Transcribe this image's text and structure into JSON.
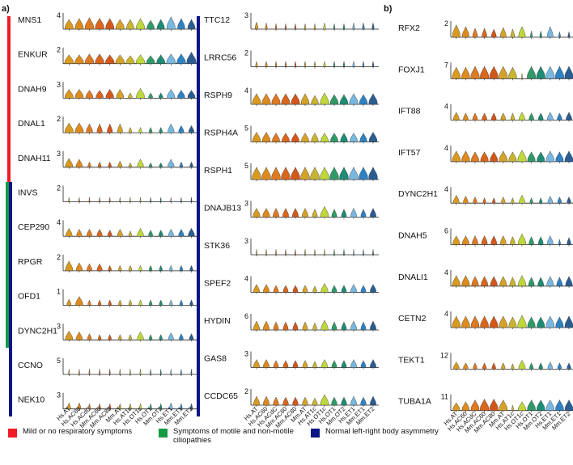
{
  "figure": {
    "panel_labels": [
      "a)",
      "b)"
    ],
    "x_labels": [
      "Hs.AT",
      "Hs.AC60",
      "Hs.ACdC",
      "Mm.AC60",
      "Mm.AC80",
      "Mm.AT",
      "Hs.AT1c",
      "Hs.OT1c",
      "Hs.OT1",
      "Mm.OT2",
      "Hs.ET1",
      "Mm.ET1",
      "Mm.ET2"
    ],
    "cell_colors": [
      "#d99a1e",
      "#dd8b1f",
      "#de7a22",
      "#d9661c",
      "#d4571a",
      "#d5a229",
      "#c8b431",
      "#bfd73a",
      "#2f9a67",
      "#1d8c74",
      "#78b7e0",
      "#2f82c2",
      "#2b5d92"
    ],
    "panel_a_left": [
      {
        "gene": "MNS1",
        "ymax": "4",
        "heights": [
          0.55,
          0.6,
          0.65,
          0.62,
          0.6,
          0.55,
          0.55,
          0.6,
          0.5,
          0.55,
          0.7,
          0.6,
          0.55
        ],
        "widths": [
          0.8,
          0.8,
          0.85,
          0.85,
          0.8,
          0.8,
          0.7,
          0.8,
          0.7,
          0.7,
          0.8,
          0.7,
          0.7
        ]
      },
      {
        "gene": "ENKUR",
        "ymax": "2",
        "heights": [
          0.5,
          0.5,
          0.55,
          0.55,
          0.5,
          0.5,
          0.45,
          0.5,
          0.45,
          0.5,
          0.55,
          0.55,
          0.65
        ],
        "widths": [
          0.85,
          0.85,
          0.85,
          0.85,
          0.85,
          0.85,
          0.8,
          0.85,
          0.8,
          0.8,
          0.85,
          0.85,
          0.9
        ]
      },
      {
        "gene": "DNAH9",
        "ymax": "3",
        "heights": [
          0.5,
          0.5,
          0.45,
          0.45,
          0.5,
          0.5,
          0.3,
          0.55,
          0.3,
          0.3,
          0.5,
          0.45,
          0.45
        ],
        "widths": [
          0.8,
          0.8,
          0.7,
          0.7,
          0.75,
          0.7,
          0.4,
          0.8,
          0.4,
          0.4,
          0.75,
          0.7,
          0.7
        ]
      },
      {
        "gene": "DNAL1",
        "ymax": "2",
        "heights": [
          0.55,
          0.55,
          0.5,
          0.5,
          0.5,
          0.5,
          0.3,
          0.3,
          0.3,
          0.3,
          0.5,
          0.4,
          0.4
        ],
        "widths": [
          0.8,
          0.8,
          0.6,
          0.5,
          0.5,
          0.5,
          0.3,
          0.3,
          0.3,
          0.3,
          0.6,
          0.5,
          0.5
        ]
      },
      {
        "gene": "DNAH11",
        "ymax": "3",
        "heights": [
          0.5,
          0.45,
          0.3,
          0.3,
          0.3,
          0.35,
          0.25,
          0.45,
          0.25,
          0.25,
          0.45,
          0.3,
          0.3
        ],
        "widths": [
          0.7,
          0.6,
          0.3,
          0.3,
          0.3,
          0.4,
          0.3,
          0.6,
          0.3,
          0.3,
          0.6,
          0.3,
          0.3
        ]
      },
      {
        "gene": "INVS",
        "ymax": "2",
        "heights": [
          0.25,
          0.25,
          0.25,
          0.25,
          0.25,
          0.25,
          0.25,
          0.25,
          0.25,
          0.25,
          0.25,
          0.25,
          0.25
        ],
        "widths": [
          0.1,
          0.1,
          0.1,
          0.1,
          0.1,
          0.1,
          0.1,
          0.1,
          0.1,
          0.1,
          0.1,
          0.1,
          0.1
        ]
      },
      {
        "gene": "CEP290",
        "ymax": "4",
        "heights": [
          0.45,
          0.4,
          0.4,
          0.4,
          0.35,
          0.4,
          0.3,
          0.45,
          0.35,
          0.35,
          0.4,
          0.4,
          0.45
        ],
        "widths": [
          0.6,
          0.5,
          0.5,
          0.5,
          0.4,
          0.5,
          0.3,
          0.6,
          0.4,
          0.4,
          0.5,
          0.5,
          0.6
        ]
      },
      {
        "gene": "RPGR",
        "ymax": "2",
        "heights": [
          0.55,
          0.45,
          0.4,
          0.4,
          0.3,
          0.3,
          0.3,
          0.3,
          0.3,
          0.3,
          0.3,
          0.3,
          0.3
        ],
        "widths": [
          0.7,
          0.6,
          0.5,
          0.5,
          0.3,
          0.3,
          0.3,
          0.3,
          0.3,
          0.3,
          0.3,
          0.3,
          0.3
        ]
      },
      {
        "gene": "OFD1",
        "ymax": "1",
        "heights": [
          0.35,
          0.5,
          0.3,
          0.3,
          0.3,
          0.3,
          0.3,
          0.3,
          0.3,
          0.3,
          0.3,
          0.3,
          0.3
        ],
        "widths": [
          0.4,
          0.7,
          0.3,
          0.3,
          0.3,
          0.3,
          0.3,
          0.3,
          0.3,
          0.3,
          0.3,
          0.3,
          0.3
        ]
      },
      {
        "gene": "DYNC2H1",
        "ymax": "3",
        "heights": [
          0.5,
          0.45,
          0.35,
          0.3,
          0.3,
          0.3,
          0.3,
          0.45,
          0.3,
          0.3,
          0.4,
          0.35,
          0.35
        ],
        "widths": [
          0.7,
          0.6,
          0.4,
          0.3,
          0.3,
          0.3,
          0.3,
          0.6,
          0.3,
          0.3,
          0.5,
          0.4,
          0.4
        ]
      },
      {
        "gene": "CCNO",
        "ymax": "5",
        "heights": [
          0.3,
          0.3,
          0.3,
          0.3,
          0.3,
          0.3,
          0.3,
          0.3,
          0.3,
          0.3,
          0.3,
          0.3,
          0.3
        ],
        "widths": [
          0.1,
          0.1,
          0.1,
          0.1,
          0.1,
          0.1,
          0.1,
          0.1,
          0.1,
          0.1,
          0.1,
          0.1,
          0.1
        ]
      },
      {
        "gene": "NEK10",
        "ymax": "3",
        "heights": [
          0.35,
          0.35,
          0.3,
          0.3,
          0.3,
          0.3,
          0.3,
          0.3,
          0.3,
          0.3,
          0.35,
          0.3,
          0.3
        ],
        "widths": [
          0.3,
          0.3,
          0.2,
          0.2,
          0.2,
          0.2,
          0.2,
          0.2,
          0.2,
          0.2,
          0.3,
          0.2,
          0.2
        ]
      }
    ],
    "panel_a_right": [
      {
        "gene": "TTC12",
        "ymax": "3",
        "heights": [
          0.4,
          0.35,
          0.3,
          0.3,
          0.3,
          0.3,
          0.3,
          0.35,
          0.3,
          0.3,
          0.35,
          0.35,
          0.35
        ],
        "widths": [
          0.3,
          0.2,
          0.15,
          0.15,
          0.15,
          0.15,
          0.15,
          0.2,
          0.15,
          0.15,
          0.2,
          0.2,
          0.2
        ]
      },
      {
        "gene": "LRRC56",
        "ymax": "2",
        "heights": [
          0.3,
          0.3,
          0.3,
          0.3,
          0.3,
          0.3,
          0.3,
          0.3,
          0.3,
          0.3,
          0.3,
          0.3,
          0.3
        ],
        "widths": [
          0.2,
          0.2,
          0.15,
          0.15,
          0.15,
          0.15,
          0.15,
          0.2,
          0.15,
          0.15,
          0.2,
          0.15,
          0.15
        ]
      },
      {
        "gene": "RSPH9",
        "ymax": "4",
        "heights": [
          0.6,
          0.6,
          0.6,
          0.6,
          0.6,
          0.6,
          0.5,
          0.65,
          0.55,
          0.55,
          0.6,
          0.55,
          0.6
        ],
        "widths": [
          0.85,
          0.85,
          0.85,
          0.85,
          0.85,
          0.8,
          0.7,
          0.85,
          0.8,
          0.8,
          0.85,
          0.8,
          0.85
        ]
      },
      {
        "gene": "RSPH4A",
        "ymax": "5",
        "heights": [
          0.55,
          0.55,
          0.5,
          0.5,
          0.5,
          0.5,
          0.5,
          0.5,
          0.5,
          0.5,
          0.5,
          0.5,
          0.55
        ],
        "widths": [
          0.8,
          0.8,
          0.75,
          0.75,
          0.75,
          0.75,
          0.7,
          0.75,
          0.75,
          0.7,
          0.75,
          0.7,
          0.8
        ]
      },
      {
        "gene": "RSPH1",
        "ymax": "5",
        "heights": [
          0.7,
          0.7,
          0.7,
          0.7,
          0.7,
          0.7,
          0.7,
          0.7,
          0.7,
          0.7,
          0.7,
          0.7,
          0.7
        ],
        "widths": [
          0.9,
          0.9,
          0.9,
          0.9,
          0.9,
          0.9,
          0.9,
          0.9,
          0.9,
          0.9,
          0.9,
          0.9,
          0.9
        ]
      },
      {
        "gene": "DNAJB13",
        "ymax": "3",
        "heights": [
          0.5,
          0.5,
          0.5,
          0.5,
          0.5,
          0.5,
          0.45,
          0.6,
          0.45,
          0.45,
          0.5,
          0.45,
          0.5
        ],
        "widths": [
          0.7,
          0.7,
          0.6,
          0.6,
          0.6,
          0.6,
          0.5,
          0.8,
          0.5,
          0.5,
          0.6,
          0.5,
          0.6
        ]
      },
      {
        "gene": "STK36",
        "ymax": "3",
        "heights": [
          0.3,
          0.3,
          0.3,
          0.3,
          0.3,
          0.3,
          0.3,
          0.3,
          0.3,
          0.3,
          0.3,
          0.3,
          0.3
        ],
        "widths": [
          0.1,
          0.1,
          0.1,
          0.1,
          0.1,
          0.1,
          0.1,
          0.1,
          0.1,
          0.1,
          0.1,
          0.1,
          0.1
        ]
      },
      {
        "gene": "SPEF2",
        "ymax": "4",
        "heights": [
          0.45,
          0.45,
          0.4,
          0.4,
          0.4,
          0.4,
          0.35,
          0.5,
          0.4,
          0.4,
          0.45,
          0.4,
          0.45
        ],
        "widths": [
          0.6,
          0.6,
          0.5,
          0.5,
          0.5,
          0.5,
          0.4,
          0.7,
          0.5,
          0.5,
          0.6,
          0.5,
          0.6
        ]
      },
      {
        "gene": "HYDIN",
        "ymax": "6",
        "heights": [
          0.5,
          0.5,
          0.45,
          0.45,
          0.45,
          0.45,
          0.4,
          0.55,
          0.45,
          0.45,
          0.5,
          0.45,
          0.5
        ],
        "widths": [
          0.6,
          0.6,
          0.5,
          0.5,
          0.5,
          0.5,
          0.4,
          0.7,
          0.5,
          0.5,
          0.6,
          0.5,
          0.6
        ]
      },
      {
        "gene": "GAS8",
        "ymax": "3",
        "heights": [
          0.45,
          0.45,
          0.4,
          0.4,
          0.4,
          0.4,
          0.35,
          0.45,
          0.4,
          0.4,
          0.45,
          0.4,
          0.45
        ],
        "widths": [
          0.6,
          0.6,
          0.5,
          0.5,
          0.5,
          0.5,
          0.4,
          0.6,
          0.5,
          0.5,
          0.6,
          0.5,
          0.6
        ]
      },
      {
        "gene": "CCDC65",
        "ymax": "2",
        "heights": [
          0.5,
          0.5,
          0.45,
          0.45,
          0.45,
          0.45,
          0.4,
          0.6,
          0.45,
          0.45,
          0.5,
          0.45,
          0.5
        ],
        "widths": [
          0.6,
          0.6,
          0.55,
          0.55,
          0.55,
          0.55,
          0.5,
          0.8,
          0.55,
          0.55,
          0.6,
          0.55,
          0.6
        ]
      }
    ],
    "panel_b": [
      {
        "gene": "RFX2",
        "ymax": "2",
        "heights": [
          0.7,
          0.6,
          0.5,
          0.5,
          0.45,
          0.55,
          0.45,
          0.6,
          0.35,
          0.35,
          0.6,
          0.3,
          0.3
        ],
        "widths": [
          0.8,
          0.7,
          0.5,
          0.5,
          0.5,
          0.6,
          0.4,
          0.7,
          0.2,
          0.2,
          0.6,
          0.2,
          0.2
        ]
      },
      {
        "gene": "FOXJ1",
        "ymax": "7",
        "heights": [
          0.65,
          0.65,
          0.7,
          0.7,
          0.7,
          0.7,
          0.65,
          0.3,
          0.7,
          0.7,
          0.7,
          0.7,
          0.7
        ],
        "widths": [
          0.85,
          0.85,
          0.9,
          0.9,
          0.9,
          0.9,
          0.85,
          0.1,
          0.9,
          0.9,
          0.9,
          0.9,
          0.9
        ]
      },
      {
        "gene": "IFT88",
        "ymax": "4",
        "heights": [
          0.45,
          0.4,
          0.4,
          0.4,
          0.4,
          0.4,
          0.4,
          0.45,
          0.4,
          0.4,
          0.45,
          0.4,
          0.45
        ],
        "widths": [
          0.6,
          0.5,
          0.5,
          0.5,
          0.5,
          0.5,
          0.4,
          0.6,
          0.5,
          0.5,
          0.6,
          0.5,
          0.6
        ]
      },
      {
        "gene": "IFT57",
        "ymax": "4",
        "heights": [
          0.6,
          0.6,
          0.55,
          0.55,
          0.55,
          0.6,
          0.55,
          0.65,
          0.55,
          0.55,
          0.6,
          0.55,
          0.6
        ],
        "widths": [
          0.85,
          0.85,
          0.8,
          0.8,
          0.8,
          0.85,
          0.8,
          0.9,
          0.8,
          0.8,
          0.85,
          0.8,
          0.85
        ]
      },
      {
        "gene": "DYNC2H1",
        "ymax": "4",
        "heights": [
          0.45,
          0.4,
          0.35,
          0.3,
          0.3,
          0.35,
          0.3,
          0.45,
          0.3,
          0.3,
          0.4,
          0.35,
          0.35
        ],
        "widths": [
          0.6,
          0.5,
          0.4,
          0.3,
          0.3,
          0.4,
          0.3,
          0.6,
          0.3,
          0.3,
          0.5,
          0.4,
          0.4
        ]
      },
      {
        "gene": "DNAH5",
        "ymax": "6",
        "heights": [
          0.5,
          0.5,
          0.5,
          0.5,
          0.5,
          0.5,
          0.45,
          0.6,
          0.45,
          0.45,
          0.5,
          0.3,
          0.4
        ],
        "widths": [
          0.7,
          0.7,
          0.6,
          0.6,
          0.6,
          0.6,
          0.5,
          0.8,
          0.5,
          0.5,
          0.6,
          0.2,
          0.4
        ]
      },
      {
        "gene": "DNALI1",
        "ymax": "4",
        "heights": [
          0.6,
          0.6,
          0.55,
          0.55,
          0.55,
          0.55,
          0.5,
          0.6,
          0.5,
          0.5,
          0.55,
          0.5,
          0.55
        ],
        "widths": [
          0.8,
          0.8,
          0.7,
          0.7,
          0.7,
          0.7,
          0.6,
          0.8,
          0.6,
          0.6,
          0.7,
          0.6,
          0.7
        ]
      },
      {
        "gene": "CETN2",
        "ymax": "4",
        "heights": [
          0.65,
          0.65,
          0.65,
          0.65,
          0.65,
          0.65,
          0.6,
          0.7,
          0.6,
          0.6,
          0.65,
          0.6,
          0.65
        ],
        "widths": [
          0.85,
          0.85,
          0.85,
          0.85,
          0.85,
          0.85,
          0.8,
          0.9,
          0.8,
          0.8,
          0.85,
          0.8,
          0.85
        ]
      },
      {
        "gene": "TEKT1",
        "ymax": "12",
        "heights": [
          0.4,
          0.35,
          0.35,
          0.35,
          0.35,
          0.35,
          0.3,
          0.5,
          0.35,
          0.35,
          0.4,
          0.35,
          0.35
        ],
        "widths": [
          0.6,
          0.5,
          0.4,
          0.4,
          0.4,
          0.4,
          0.3,
          0.7,
          0.4,
          0.4,
          0.5,
          0.4,
          0.4
        ]
      },
      {
        "gene": "TUBA1A",
        "ymax": "11",
        "heights": [
          0.45,
          0.5,
          0.6,
          0.65,
          0.65,
          0.6,
          0.3,
          0.5,
          0.6,
          0.6,
          0.6,
          0.6,
          0.6
        ],
        "widths": [
          0.7,
          0.75,
          0.85,
          0.9,
          0.9,
          0.85,
          0.2,
          0.8,
          0.85,
          0.85,
          0.85,
          0.85,
          0.85
        ]
      }
    ],
    "legend": [
      {
        "label": "Mild or no respiratory symptoms",
        "color": "#ee1c24"
      },
      {
        "label": "Symptoms of motile and non-motile ciliopathies",
        "color": "#169b45"
      },
      {
        "label": "Normal left-right body asymmetry",
        "color": "#0b1585"
      }
    ],
    "side_bar_colors": {
      "red": "#ee1c24",
      "green": "#169b45",
      "blue": "#0b1585"
    }
  }
}
